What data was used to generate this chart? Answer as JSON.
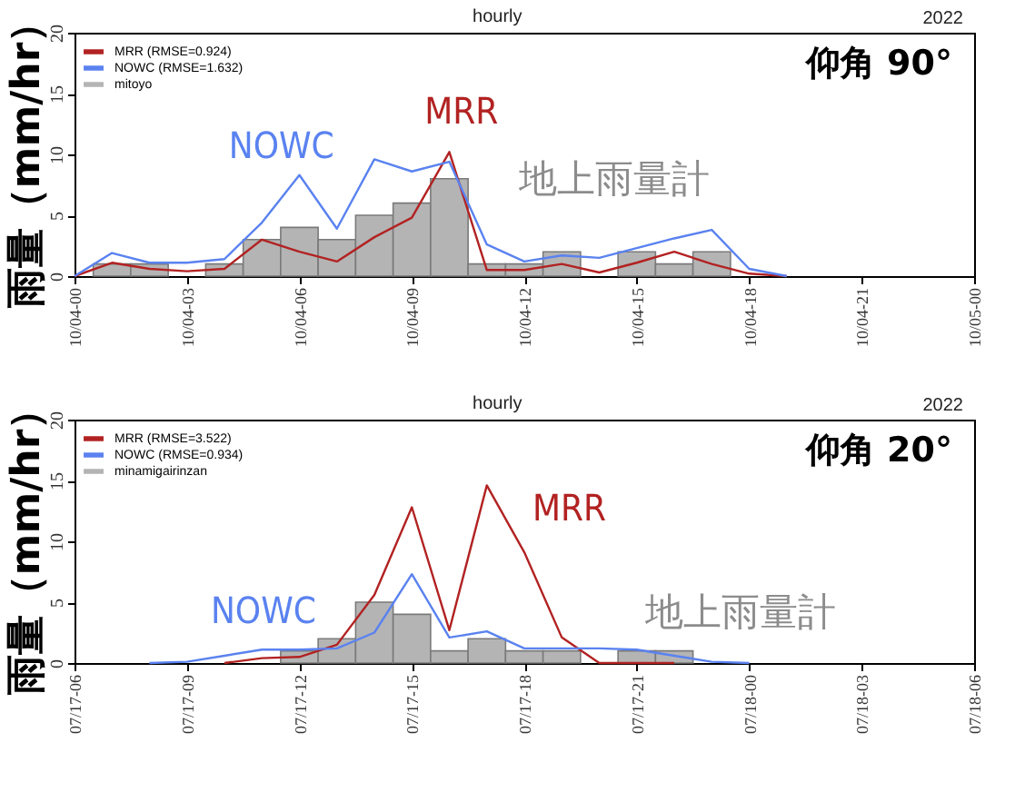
{
  "chart_data": [
    {
      "type": "line",
      "title": "hourly",
      "ylabel": "雨量（mm/hr）",
      "legend": "top left",
      "grid": false,
      "x": [
        "2022-10-04T00:00",
        "2022-10-04T01:00",
        "2022-10-04T02:00",
        "2022-10-04T03:00",
        "2022-10-04T04:00",
        "2022-10-04T05:00",
        "2022-10-04T06:00",
        "2022-10-04T07:00",
        "2022-10-04T08:00",
        "2022-10-04T09:00",
        "2022-10-04T10:00",
        "2022-10-04T11:00",
        "2022-10-04T12:00",
        "2022-10-04T13:00",
        "2022-10-04T14:00",
        "2022-10-04T15:00",
        "2022-10-04T16:00",
        "2022-10-04T17:00",
        "2022-10-04T18:00",
        "2022-10-04T19:00"
      ],
      "xlim": [
        "2022-10-04T00:00",
        "2022-10-05T00:00"
      ],
      "xticks": [
        {
          "value": "2022-10-04T00:00",
          "label": "10/04-00"
        },
        {
          "value": "2022-10-04T03:00",
          "label": "10/04-03"
        },
        {
          "value": "2022-10-04T06:00",
          "label": "10/04-06"
        },
        {
          "value": "2022-10-04T09:00",
          "label": "10/04-09"
        },
        {
          "value": "2022-10-04T12:00",
          "label": "10/04-12"
        },
        {
          "value": "2022-10-04T15:00",
          "label": "10/04-15"
        },
        {
          "value": "2022-10-04T18:00",
          "label": "10/04-18"
        },
        {
          "value": "2022-10-04T21:00",
          "label": "10/04-21"
        },
        {
          "value": "2022-10-05T00:00",
          "label": "10/05-00"
        }
      ],
      "ylim": [
        0,
        20
      ],
      "yticks": [
        0,
        5,
        10,
        15,
        20
      ],
      "series": [
        {
          "name": "MRR (RMSE=0.924)",
          "color": "#b22222",
          "values": [
            0,
            1.1,
            0.6,
            0.4,
            0.6,
            3.0,
            2.0,
            1.2,
            3.2,
            4.8,
            10.2,
            0.5,
            0.5,
            1.0,
            0.3,
            1.1,
            2.0,
            1.0,
            0.2,
            0
          ]
        },
        {
          "name": "NOWC (RMSE=1.632)",
          "color": "#5a82f0",
          "values": [
            0,
            1.9,
            1.1,
            1.1,
            1.4,
            4.4,
            8.3,
            3.9,
            9.6,
            8.6,
            9.4,
            2.6,
            1.2,
            1.7,
            1.5,
            2.3,
            3.1,
            3.8,
            0.6,
            0
          ]
        },
        {
          "name": "mitoyo",
          "type": "bar",
          "color": "#b4b4b4",
          "values": [
            null,
            1,
            1,
            null,
            1,
            3,
            4,
            3,
            5,
            6,
            8,
            1,
            1,
            2,
            null,
            2,
            1,
            2,
            null,
            null
          ]
        }
      ],
      "annotations": [
        "2022",
        "仰角 90°",
        "NOWC",
        "MRR",
        "地上雨量計"
      ]
    },
    {
      "type": "line",
      "title": "hourly",
      "ylabel": "雨量（mm/hr）",
      "legend": "top left",
      "grid": false,
      "x": [
        "2022-07-17T08:00",
        "2022-07-17T09:00",
        "2022-07-17T10:00",
        "2022-07-17T11:00",
        "2022-07-17T12:00",
        "2022-07-17T13:00",
        "2022-07-17T14:00",
        "2022-07-17T15:00",
        "2022-07-17T16:00",
        "2022-07-17T17:00",
        "2022-07-17T18:00",
        "2022-07-17T19:00",
        "2022-07-17T20:00",
        "2022-07-17T21:00",
        "2022-07-17T22:00",
        "2022-07-17T23:00",
        "2022-07-18T00:00"
      ],
      "xlim": [
        "2022-07-17T06:00",
        "2022-07-18T06:00"
      ],
      "xticks": [
        {
          "value": "2022-07-17T06:00",
          "label": "07/17-06"
        },
        {
          "value": "2022-07-17T09:00",
          "label": "07/17-09"
        },
        {
          "value": "2022-07-17T12:00",
          "label": "07/17-12"
        },
        {
          "value": "2022-07-17T15:00",
          "label": "07/17-15"
        },
        {
          "value": "2022-07-17T18:00",
          "label": "07/17-18"
        },
        {
          "value": "2022-07-17T21:00",
          "label": "07/17-21"
        },
        {
          "value": "2022-07-18T00:00",
          "label": "07/18-00"
        },
        {
          "value": "2022-07-18T03:00",
          "label": "07/18-03"
        },
        {
          "value": "2022-07-18T06:00",
          "label": "07/18-06"
        }
      ],
      "ylim": [
        0,
        20
      ],
      "yticks": [
        0,
        5,
        10,
        15,
        20
      ],
      "series": [
        {
          "name": "MRR (RMSE=3.522)",
          "color": "#b22222",
          "values": [
            null,
            null,
            0,
            0.4,
            0.5,
            1.5,
            5.6,
            12.8,
            2.7,
            14.6,
            9.1,
            2.1,
            0,
            0,
            0,
            null,
            null
          ]
        },
        {
          "name": "NOWC (RMSE=0.934)",
          "color": "#5a82f0",
          "values": [
            0,
            0.1,
            0.6,
            1.1,
            1.1,
            1.2,
            2.5,
            7.3,
            2.1,
            2.6,
            1.2,
            1.2,
            1.2,
            1.1,
            0.6,
            0.1,
            0
          ]
        },
        {
          "name": "minamigairinzan",
          "type": "bar",
          "color": "#b4b4b4",
          "values": [
            null,
            null,
            null,
            null,
            1,
            2,
            5,
            4,
            1,
            2,
            1,
            1,
            null,
            1,
            1,
            null,
            null
          ]
        }
      ],
      "annotations": [
        "2022",
        "仰角 20°",
        "NOWC",
        "MRR",
        "地上雨量計"
      ]
    }
  ]
}
